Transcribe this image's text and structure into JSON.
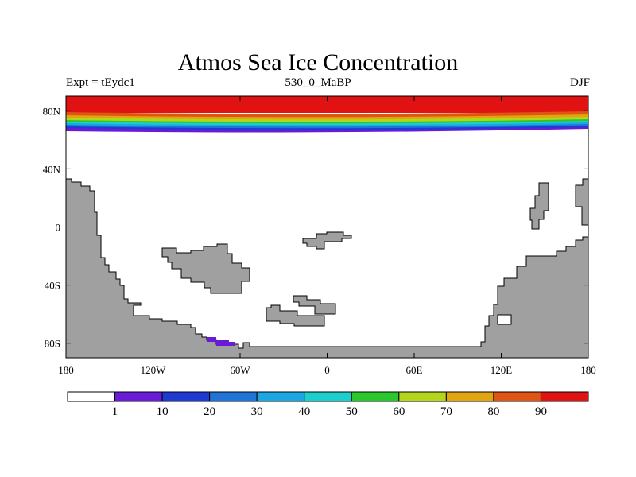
{
  "title": "Atmos Sea Ice Concentration",
  "left_label": "Expt = tEydc1",
  "center_label": "530_0_MaBP",
  "right_label": "DJF",
  "lat_ticks": [
    {
      "value": 80,
      "label": "80N"
    },
    {
      "value": 40,
      "label": "40N"
    },
    {
      "value": 0,
      "label": "0"
    },
    {
      "value": -40,
      "label": "40S"
    },
    {
      "value": -80,
      "label": "80S"
    }
  ],
  "lon_ticks": [
    {
      "value": -180,
      "label": "180"
    },
    {
      "value": -120,
      "label": "120W"
    },
    {
      "value": -60,
      "label": "60W"
    },
    {
      "value": 0,
      "label": "0"
    },
    {
      "value": 60,
      "label": "60E"
    },
    {
      "value": 120,
      "label": "120E"
    },
    {
      "value": 180,
      "label": "180"
    }
  ],
  "colorbar": {
    "labels": [
      "1",
      "10",
      "20",
      "30",
      "40",
      "50",
      "60",
      "70",
      "80",
      "90"
    ],
    "colors": [
      "#ffffff",
      "#6a1bd8",
      "#1e3ad0",
      "#1f74d8",
      "#1ba7e4",
      "#1bcfcf",
      "#2bc82b",
      "#b3d61c",
      "#e2a40f",
      "#de5514",
      "#e01212"
    ]
  },
  "map": {
    "lon_range": [
      -180,
      180
    ],
    "lat_range": [
      -90,
      90
    ],
    "land_color": "#a0a0a0",
    "ocean_color": "#ffffff"
  }
}
